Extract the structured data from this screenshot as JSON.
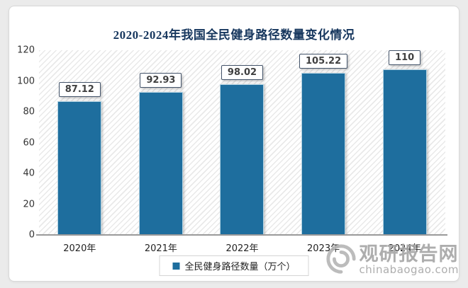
{
  "chart_data": {
    "type": "bar",
    "title": "2020-2024年我国全民健身路径数量变化情况",
    "categories": [
      "2020年",
      "2021年",
      "2022年",
      "2023年",
      "2024年"
    ],
    "values": [
      87.12,
      92.93,
      98.02,
      105.22,
      110
    ],
    "value_labels": [
      "87.12",
      "92.93",
      "98.02",
      "105.22",
      "110"
    ],
    "ylim": [
      0,
      120
    ],
    "yticks": [
      0,
      20,
      40,
      60,
      80,
      100,
      120
    ],
    "xlabel": "",
    "ylabel": "",
    "grid": false,
    "legend": {
      "label": "全民健身路径数量（万个）",
      "position": "bottom"
    },
    "bar_color": "#1e6e9e",
    "title_color": "#17375e"
  },
  "watermark": {
    "name": "观研报告网",
    "url": "chinabaogao.com",
    "logo": "swirl-icon",
    "color": "#a5a5a5"
  }
}
